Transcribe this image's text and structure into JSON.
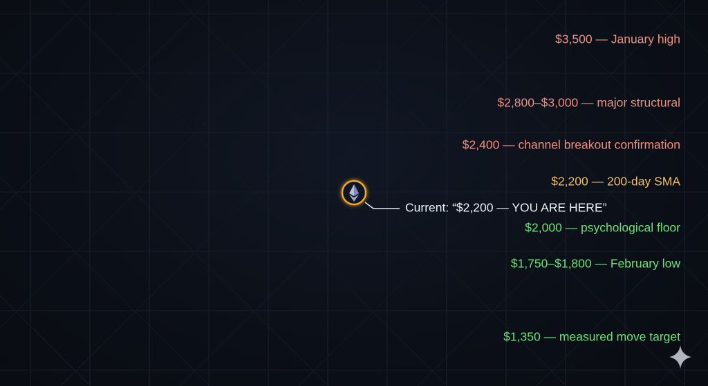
{
  "chart_data": {
    "type": "line",
    "title": "",
    "xlabel": "",
    "ylabel": "",
    "levels": [
      {
        "label": "$3,500 — January high",
        "price": 3500,
        "color": "#f24a4a",
        "label_color": "#f08e80"
      },
      {
        "label": "$2,800–$3,000 — major structural",
        "price_low": 2800,
        "price_high": 3000,
        "color": "#f24a4a",
        "label_color": "#f08e80"
      },
      {
        "label": "$2,400 — channel breakout confirmation",
        "price": 2400,
        "color": "#f24a4a",
        "label_color": "#f08e80"
      },
      {
        "label": "$2,200 — 200-day SMA",
        "price": 2200,
        "color": "#f2aa2e",
        "label_color": "#f0be5c"
      },
      {
        "label": "$2,000 — psychological floor",
        "price": 2000,
        "color": "#3fe04f",
        "label_color": "#6fe07c"
      },
      {
        "label": "$1,750–$1,800 — February low",
        "price_low": 1750,
        "price_high": 1800,
        "color": "#3fe04f",
        "label_color": "#6fe07c"
      },
      {
        "label": "$1,350 — measured move target",
        "price": 1350,
        "color": "#3fe04f",
        "label_color": "#6fe07c"
      }
    ],
    "current": {
      "label": "Current: “$2,200 — YOU ARE HERE”",
      "price": 2200,
      "icon": "ethereum-icon"
    },
    "grid": true
  },
  "corner_icon": "sparkle-icon"
}
